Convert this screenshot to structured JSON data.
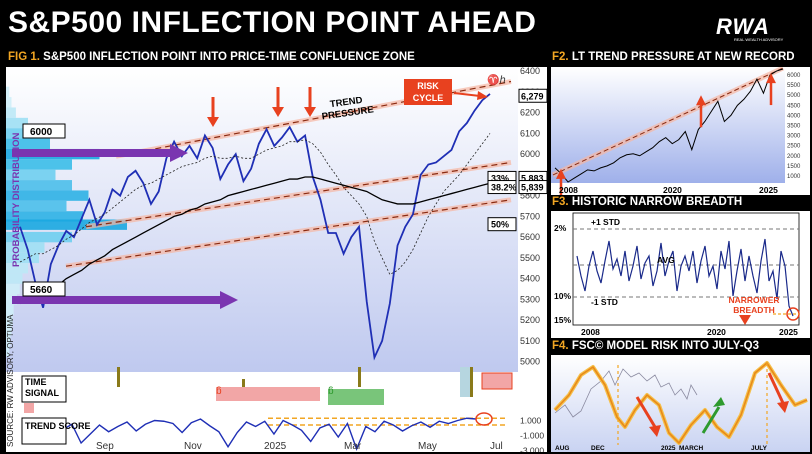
{
  "header": {
    "title": "S&P500 INFLECTION POINT AHEAD",
    "logo": "RWA",
    "logo_sub": "REAL WEALTH ADVISORY"
  },
  "fig1": {
    "label": "FIG 1.",
    "caption": "S&P500 INFLECTION POINT INTO PRICE-TIME CONFLUENCE ZONE",
    "side_label": "PROBABILITY DISTRIBUTION",
    "source": "SOURCE: RW ADVISORY, OPTUMA",
    "risk_box": "RISK CYCLE",
    "trend_label": "TREND PRESSURE",
    "vol_labels": [
      "6000",
      "5660"
    ],
    "fib_labels": [
      "33%",
      "38.2%",
      "50%"
    ],
    "price_flags": [
      "6,279",
      "5,883",
      "5,839"
    ],
    "time_signal": "TIME SIGNAL",
    "trend_score": "TREND SCORE",
    "score_ticks": [
      "1.000",
      "-1.000",
      "-3.000"
    ],
    "glyphs": [
      "ᵷ",
      "ᵷ",
      "ᵷ",
      "♈ℎ"
    ]
  },
  "fig2": {
    "label": "F2.",
    "caption": "LT TREND PRESSURE AT NEW RECORD"
  },
  "fig3": {
    "label": "F3.",
    "caption": "HISTORIC NARROW BREADTH",
    "std_plus": "+1 STD",
    "std_minus": "-1 STD",
    "avg": "AVG",
    "note": "NARROWER BREADTH"
  },
  "fig4": {
    "label": "F4.",
    "caption": "FSC© MODEL RISK INTO JULY-Q3"
  },
  "colors": {
    "blue": "#1f2fb5",
    "orange": "#f2a623",
    "red": "#e8411f",
    "purple": "#7a35b0",
    "green": "#2e9a2e"
  },
  "chart_data": [
    {
      "type": "line",
      "title": "S&P500 INFLECTION POINT INTO PRICE-TIME CONFLUENCE ZONE",
      "x_ticks": [
        "Sep",
        "Nov",
        "2025",
        "Mar",
        "May",
        "Jul"
      ],
      "y_ticks": [
        6400,
        6300,
        6200,
        6100,
        6000,
        5900,
        5800,
        5700,
        5600,
        5500,
        5400,
        5300,
        5200,
        5100,
        5000
      ],
      "ylim": [
        4950,
        6420
      ],
      "series": [
        {
          "values": [
            5650,
            5540,
            5380,
            5260,
            5470,
            5560,
            5630,
            5600,
            5690,
            5780,
            5660,
            5720,
            5830,
            5800,
            5890,
            5920,
            5860,
            5760,
            5820,
            5980,
            6060,
            5990,
            6040,
            5980,
            6090,
            6030,
            5880,
            5950,
            6000,
            5870,
            5930,
            6050,
            6120,
            6040,
            6080,
            6130,
            6060,
            6090,
            5890,
            5780,
            5620,
            5620,
            5520,
            5600,
            5650,
            5290,
            5020,
            5100,
            5280,
            5560,
            5650,
            5710,
            5900,
            5950,
            5960,
            5990,
            6020,
            6110,
            6150,
            6210,
            6260,
            6290
          ]
        },
        {
          "values": [
            5480,
            5500,
            5520,
            5520,
            5540,
            5560,
            5590,
            5610,
            5640,
            5670,
            5690,
            5710,
            5740,
            5770,
            5800,
            5830,
            5850,
            5860,
            5880,
            5900,
            5920,
            5940,
            5950,
            5960,
            5980,
            5990,
            5980,
            5980,
            5990,
            5980,
            5980,
            6000,
            6020,
            6030,
            6040,
            6060,
            6060,
            6070,
            6050,
            6010,
            5950,
            5900,
            5840,
            5800,
            5760,
            5700,
            5580,
            5500,
            5420,
            5440,
            5480,
            5540,
            5620,
            5700,
            5760,
            5820,
            5860,
            5900,
            5950,
            6000,
            6050,
            6100
          ]
        },
        {
          "values": [
            5280,
            5300,
            5320,
            5330,
            5350,
            5370,
            5400,
            5420,
            5440,
            5470,
            5490,
            5510,
            5540,
            5560,
            5580,
            5600,
            5620,
            5640,
            5660,
            5680,
            5700,
            5710,
            5730,
            5740,
            5760,
            5770,
            5780,
            5800,
            5810,
            5820,
            5830,
            5840,
            5850,
            5860,
            5870,
            5880,
            5880,
            5890,
            5890,
            5880,
            5870,
            5860,
            5850,
            5840,
            5830,
            5820,
            5800,
            5780,
            5770,
            5760,
            5760,
            5760,
            5770,
            5780,
            5790,
            5800,
            5810,
            5820,
            5830,
            5840,
            5850,
            5860
          ]
        }
      ]
    },
    {
      "type": "line",
      "title": "LT TREND PRESSURE AT NEW RECORD",
      "x_ticks": [
        "2008",
        "2020",
        "2025"
      ],
      "y_ticks": [
        6000,
        5500,
        5000,
        4500,
        4000,
        3500,
        3000,
        2500,
        2000,
        1500,
        1000
      ],
      "ylim": [
        650,
        6400
      ]
    },
    {
      "type": "line",
      "title": "HISTORIC NARROW BREADTH",
      "x_ticks": [
        "2008",
        "2020",
        "2025"
      ],
      "y_ticks": [
        "2%",
        "10%",
        "15%"
      ]
    },
    {
      "type": "line",
      "title": "FSC© MODEL RISK INTO JULY-Q3",
      "x_ticks": [
        "AUG",
        "DEC",
        "2025",
        "MARCH",
        "JULY"
      ]
    }
  ]
}
